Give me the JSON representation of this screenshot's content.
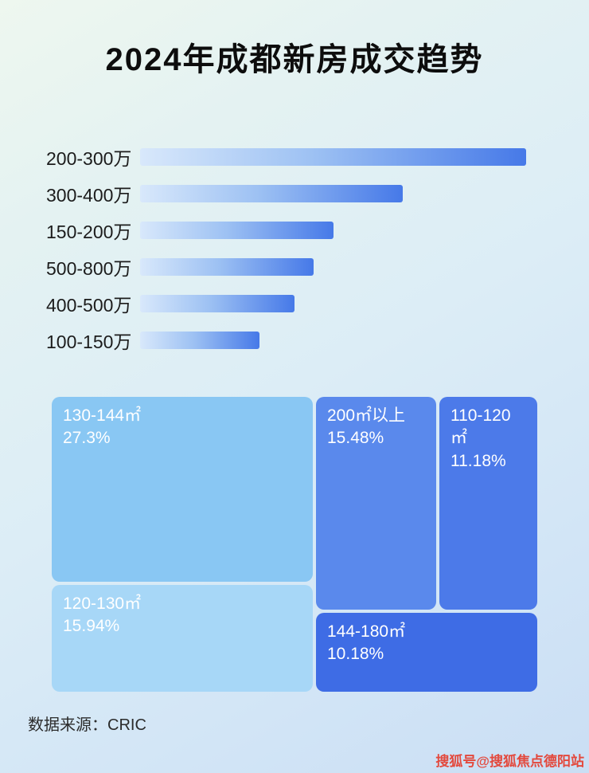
{
  "title": "2024年成都新房成交趋势",
  "chart_data": [
    {
      "type": "bar",
      "orientation": "horizontal",
      "title": "",
      "categories": [
        "200-300万",
        "300-400万",
        "150-200万",
        "500-800万",
        "400-500万",
        "100-150万"
      ],
      "values_relative_pct_of_max": [
        100,
        68,
        50,
        45,
        40,
        31
      ],
      "bar_widths_css": [
        "100%",
        "68%",
        "50%",
        "45%",
        "40%",
        "31%"
      ],
      "value_labels_shown": false,
      "xlabel": "",
      "ylabel": "",
      "bar_gradient": [
        "#d8e8fb",
        "#4679e8"
      ],
      "grid": false,
      "legend": false
    },
    {
      "type": "treemap",
      "title": "",
      "blocks": [
        {
          "label": "130-144㎡",
          "value": 27.3,
          "value_label": "27.3%",
          "color": "#89c7f3"
        },
        {
          "label": "200㎡以上",
          "value": 15.48,
          "value_label": "15.48%",
          "color": "#5a89ec"
        },
        {
          "label": "110-120㎡",
          "value": 11.18,
          "value_label": "11.18%",
          "color": "#4c7ae9"
        },
        {
          "label": "120-130㎡",
          "value": 15.94,
          "value_label": "15.94%",
          "color": "#a7d7f7"
        },
        {
          "label": "144-180㎡",
          "value": 10.18,
          "value_label": "10.18%",
          "color": "#3e6ce5"
        }
      ]
    }
  ],
  "footer": {
    "source": "数据来源：CRIC"
  },
  "watermark": {
    "text": "搜狐号@搜狐焦点德阳站",
    "color": "#e3493d"
  }
}
